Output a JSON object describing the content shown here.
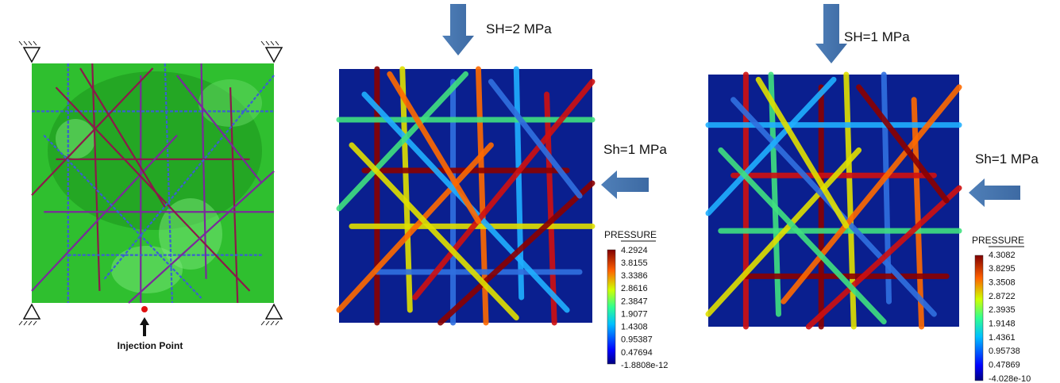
{
  "panels": [
    {
      "label": "Injection Point"
    },
    {
      "top_load": "SH=2 MPa",
      "side_load": "Sh=1 MPa",
      "colorbar": {
        "title": "PRESSURE",
        "labels": [
          "4.2924",
          "3.8155",
          "3.3386",
          "2.8616",
          "2.3847",
          "1.9077",
          "1.4308",
          "0.95387",
          "0.47694",
          "-1.8808e-12"
        ]
      }
    },
    {
      "top_load": "SH=1 MPa",
      "side_load": "Sh=1 MPa",
      "colorbar": {
        "title": "PRESSURE",
        "labels": [
          "4.3082",
          "3.8295",
          "3.3508",
          "2.8722",
          "2.3935",
          "1.9148",
          "1.4361",
          "0.95738",
          "0.47869",
          "-4.028e-10"
        ]
      }
    }
  ]
}
